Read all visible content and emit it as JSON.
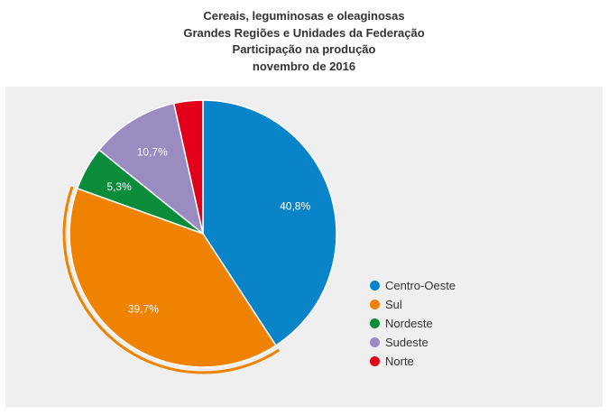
{
  "chart_data": {
    "type": "pie",
    "title": [
      "Cereais, leguminosas e oleaginosas",
      "Grandes Regiões e Unidades da Federação",
      "Participação na produção",
      "novembro de 2016"
    ],
    "slices": [
      {
        "name": "Centro-Oeste",
        "value": 40.8,
        "label": "40,8%",
        "color": "#0a84c9"
      },
      {
        "name": "Sul",
        "value": 39.7,
        "label": "39,7%",
        "color": "#ef8200"
      },
      {
        "name": "Nordeste",
        "value": 5.3,
        "label": "5,3%",
        "color": "#0a8c3b"
      },
      {
        "name": "Sudeste",
        "value": 10.7,
        "label": "10,7%",
        "color": "#9a8bc0"
      },
      {
        "name": "Norte",
        "value": 3.5,
        "label": "",
        "color": "#e2001a"
      }
    ],
    "highlighted_slice": "Sul",
    "legend_position": "right"
  }
}
